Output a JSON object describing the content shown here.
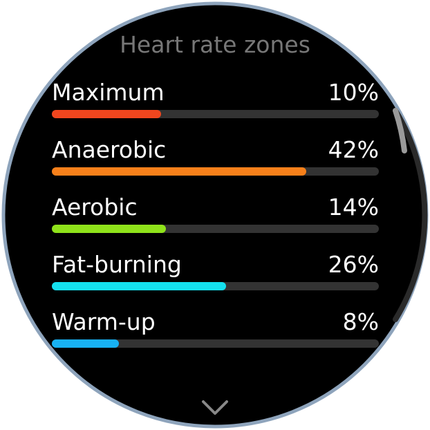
{
  "header": {
    "title": "Heart rate zones"
  },
  "zones": [
    {
      "name": "Maximum",
      "percent": "10%",
      "color": "#f0461e"
    },
    {
      "name": "Anaerobic",
      "percent": "42%",
      "color": "#f7801a"
    },
    {
      "name": "Aerobic",
      "percent": "14%",
      "color": "#8fe21a"
    },
    {
      "name": "Fat-burning",
      "percent": "26%",
      "color": "#14e0ee"
    },
    {
      "name": "Warm-up",
      "percent": "8%",
      "color": "#18b2f4"
    }
  ]
}
